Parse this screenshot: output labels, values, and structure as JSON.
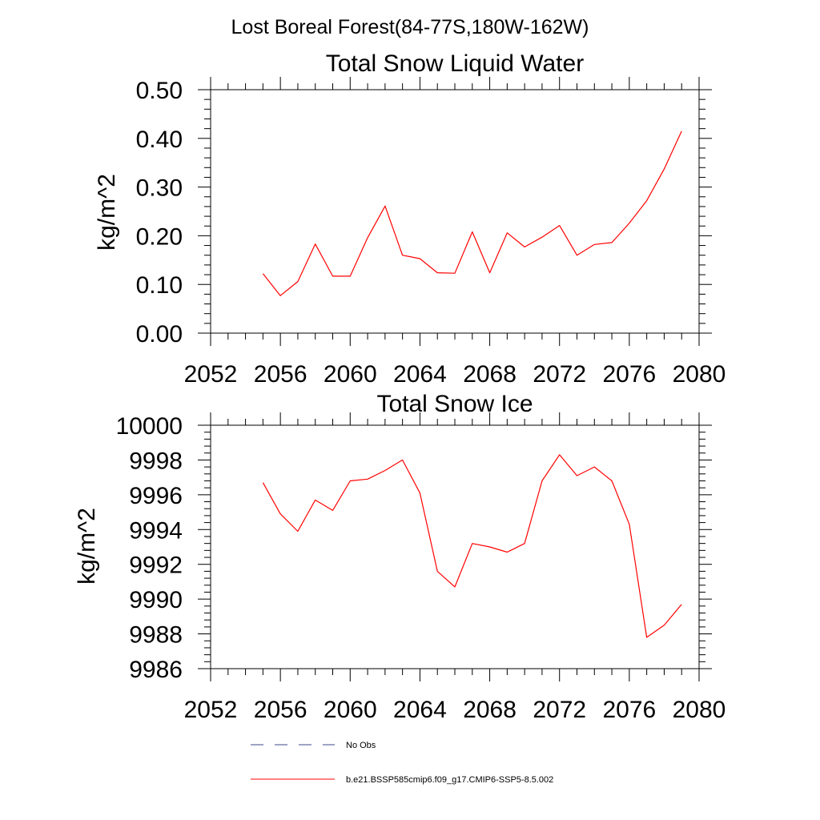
{
  "figure_title": "Lost Boreal Forest(84-77S,180W-162W)",
  "chart_data": [
    {
      "type": "line",
      "title": "Total Snow Liquid Water",
      "xlabel": "",
      "ylabel": "kg/m^2",
      "xlim": [
        2052,
        2080
      ],
      "ylim": [
        0.0,
        0.5
      ],
      "x_ticks": [
        2052,
        2056,
        2060,
        2064,
        2068,
        2072,
        2076,
        2080
      ],
      "x_tick_labels": [
        "2052",
        "2056",
        "2060",
        "2064",
        "2068",
        "2072",
        "2076",
        "2080"
      ],
      "y_ticks": [
        0.0,
        0.1,
        0.2,
        0.3,
        0.4,
        0.5
      ],
      "y_tick_labels": [
        "0.00",
        "0.10",
        "0.20",
        "0.30",
        "0.40",
        "0.50"
      ],
      "grid": false,
      "series": [
        {
          "name": "b.e21.BSSP585cmip6.f09_g17.CMIP6-SSP5-8.5.002",
          "color": "#ff0000",
          "x": [
            2055,
            2056,
            2057,
            2058,
            2059,
            2060,
            2061,
            2062,
            2063,
            2064,
            2065,
            2066,
            2067,
            2068,
            2069,
            2070,
            2071,
            2072,
            2073,
            2074,
            2075,
            2076,
            2077,
            2078,
            2079
          ],
          "y": [
            0.122,
            0.077,
            0.106,
            0.183,
            0.117,
            0.117,
            0.196,
            0.261,
            0.16,
            0.153,
            0.124,
            0.123,
            0.208,
            0.124,
            0.206,
            0.177,
            0.197,
            0.221,
            0.16,
            0.182,
            0.186,
            0.226,
            0.272,
            0.337,
            0.415
          ]
        }
      ]
    },
    {
      "type": "line",
      "title": "Total Snow Ice",
      "xlabel": "",
      "ylabel": "kg/m^2",
      "xlim": [
        2052,
        2080
      ],
      "ylim": [
        9986,
        10000
      ],
      "x_ticks": [
        2052,
        2056,
        2060,
        2064,
        2068,
        2072,
        2076,
        2080
      ],
      "x_tick_labels": [
        "2052",
        "2056",
        "2060",
        "2064",
        "2068",
        "2072",
        "2076",
        "2080"
      ],
      "y_ticks": [
        9986,
        9988,
        9990,
        9992,
        9994,
        9996,
        9998,
        10000
      ],
      "y_tick_labels": [
        "9986",
        "9988",
        "9990",
        "9992",
        "9994",
        "9996",
        "9998",
        "10000"
      ],
      "grid": false,
      "series": [
        {
          "name": "b.e21.BSSP585cmip6.f09_g17.CMIP6-SSP5-8.5.002",
          "color": "#ff0000",
          "x": [
            2055,
            2056,
            2057,
            2058,
            2059,
            2060,
            2061,
            2062,
            2063,
            2064,
            2065,
            2066,
            2067,
            2068,
            2069,
            2070,
            2071,
            2072,
            2073,
            2074,
            2075,
            2076,
            2077,
            2078,
            2079
          ],
          "y": [
            9996.7,
            9994.9,
            9993.9,
            9995.7,
            9995.1,
            9996.8,
            9996.9,
            9997.4,
            9998.0,
            9996.1,
            9991.6,
            9990.7,
            9993.2,
            9993.0,
            9992.7,
            9993.2,
            9996.8,
            9998.3,
            9997.1,
            9997.6,
            9996.8,
            9994.3,
            9987.8,
            9988.5,
            9989.7
          ]
        }
      ]
    }
  ],
  "legend": {
    "position": "bottom-center",
    "entries": [
      {
        "label": "No Obs",
        "color": "#3b4a8a",
        "style": "dashed"
      },
      {
        "label": "b.e21.BSSP585cmip6.f09_g17.CMIP6-SSP5-8.5.002",
        "color": "#ff0000",
        "style": "solid"
      }
    ]
  }
}
